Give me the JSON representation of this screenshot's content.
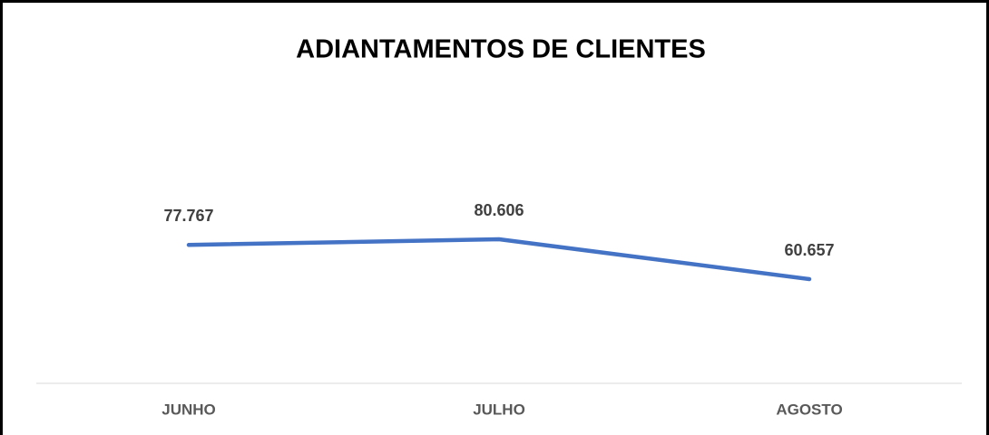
{
  "chart_data": {
    "type": "line",
    "title": "ADIANTAMENTOS DE CLIENTES",
    "categories": [
      "JUNHO",
      "JULHO",
      "AGOSTO"
    ],
    "values": [
      77767,
      80606,
      60657
    ],
    "value_labels": [
      "77.767",
      "80.606",
      "60.657"
    ],
    "color": "#4472c4"
  }
}
